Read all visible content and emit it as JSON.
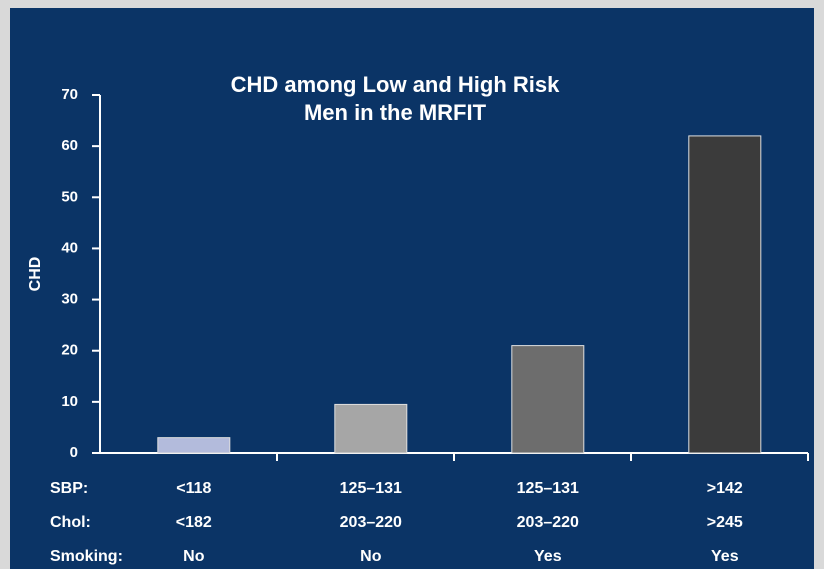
{
  "chart_data": {
    "type": "bar",
    "title": [
      "CHD among Low and High Risk",
      "Men in the MRFIT"
    ],
    "y_label": "CHD",
    "category_row_labels": [
      "SBP:",
      "Chol:",
      "Smoking:"
    ],
    "categories": [
      [
        "<118",
        "<182",
        "No"
      ],
      [
        "125–131",
        "203–220",
        "No"
      ],
      [
        "125–131",
        "203–220",
        "Yes"
      ],
      [
        ">142",
        ">245",
        "Yes"
      ]
    ],
    "values": [
      3,
      9.5,
      21,
      62
    ],
    "colors": [
      "#b3bbdc",
      "#a6a6a6",
      "#6d6d6d",
      "#3b3b3b"
    ],
    "ylim": [
      0,
      70
    ],
    "yticks": [
      0,
      10,
      20,
      30,
      40,
      50,
      60,
      70
    ],
    "grid": false
  }
}
